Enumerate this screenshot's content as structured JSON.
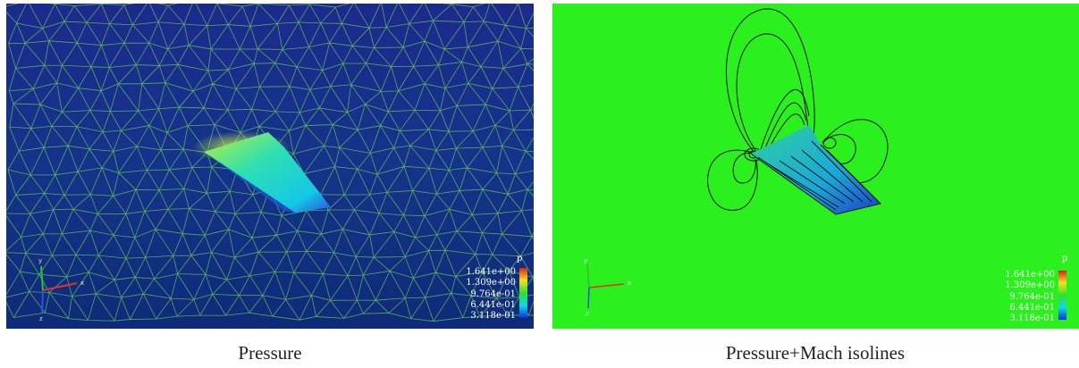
{
  "panels": [
    {
      "caption": "Pressure",
      "legend": {
        "title": "p",
        "labels": [
          "1.641e+00",
          "1.309e+00",
          "9.764e-01",
          "6.441e-01",
          "3.118e-01"
        ]
      },
      "axes": {
        "x": "x",
        "y": "y",
        "z": "z"
      }
    },
    {
      "caption": "Pressure+Mach isolines",
      "legend": {
        "title": "p",
        "labels": [
          "1.641e+00",
          "1.309e+00",
          "9.764e-01",
          "6.441e-01",
          "3.118e-01"
        ]
      },
      "axes": {
        "x": "x",
        "y": "y",
        "z": "z"
      }
    }
  ]
}
